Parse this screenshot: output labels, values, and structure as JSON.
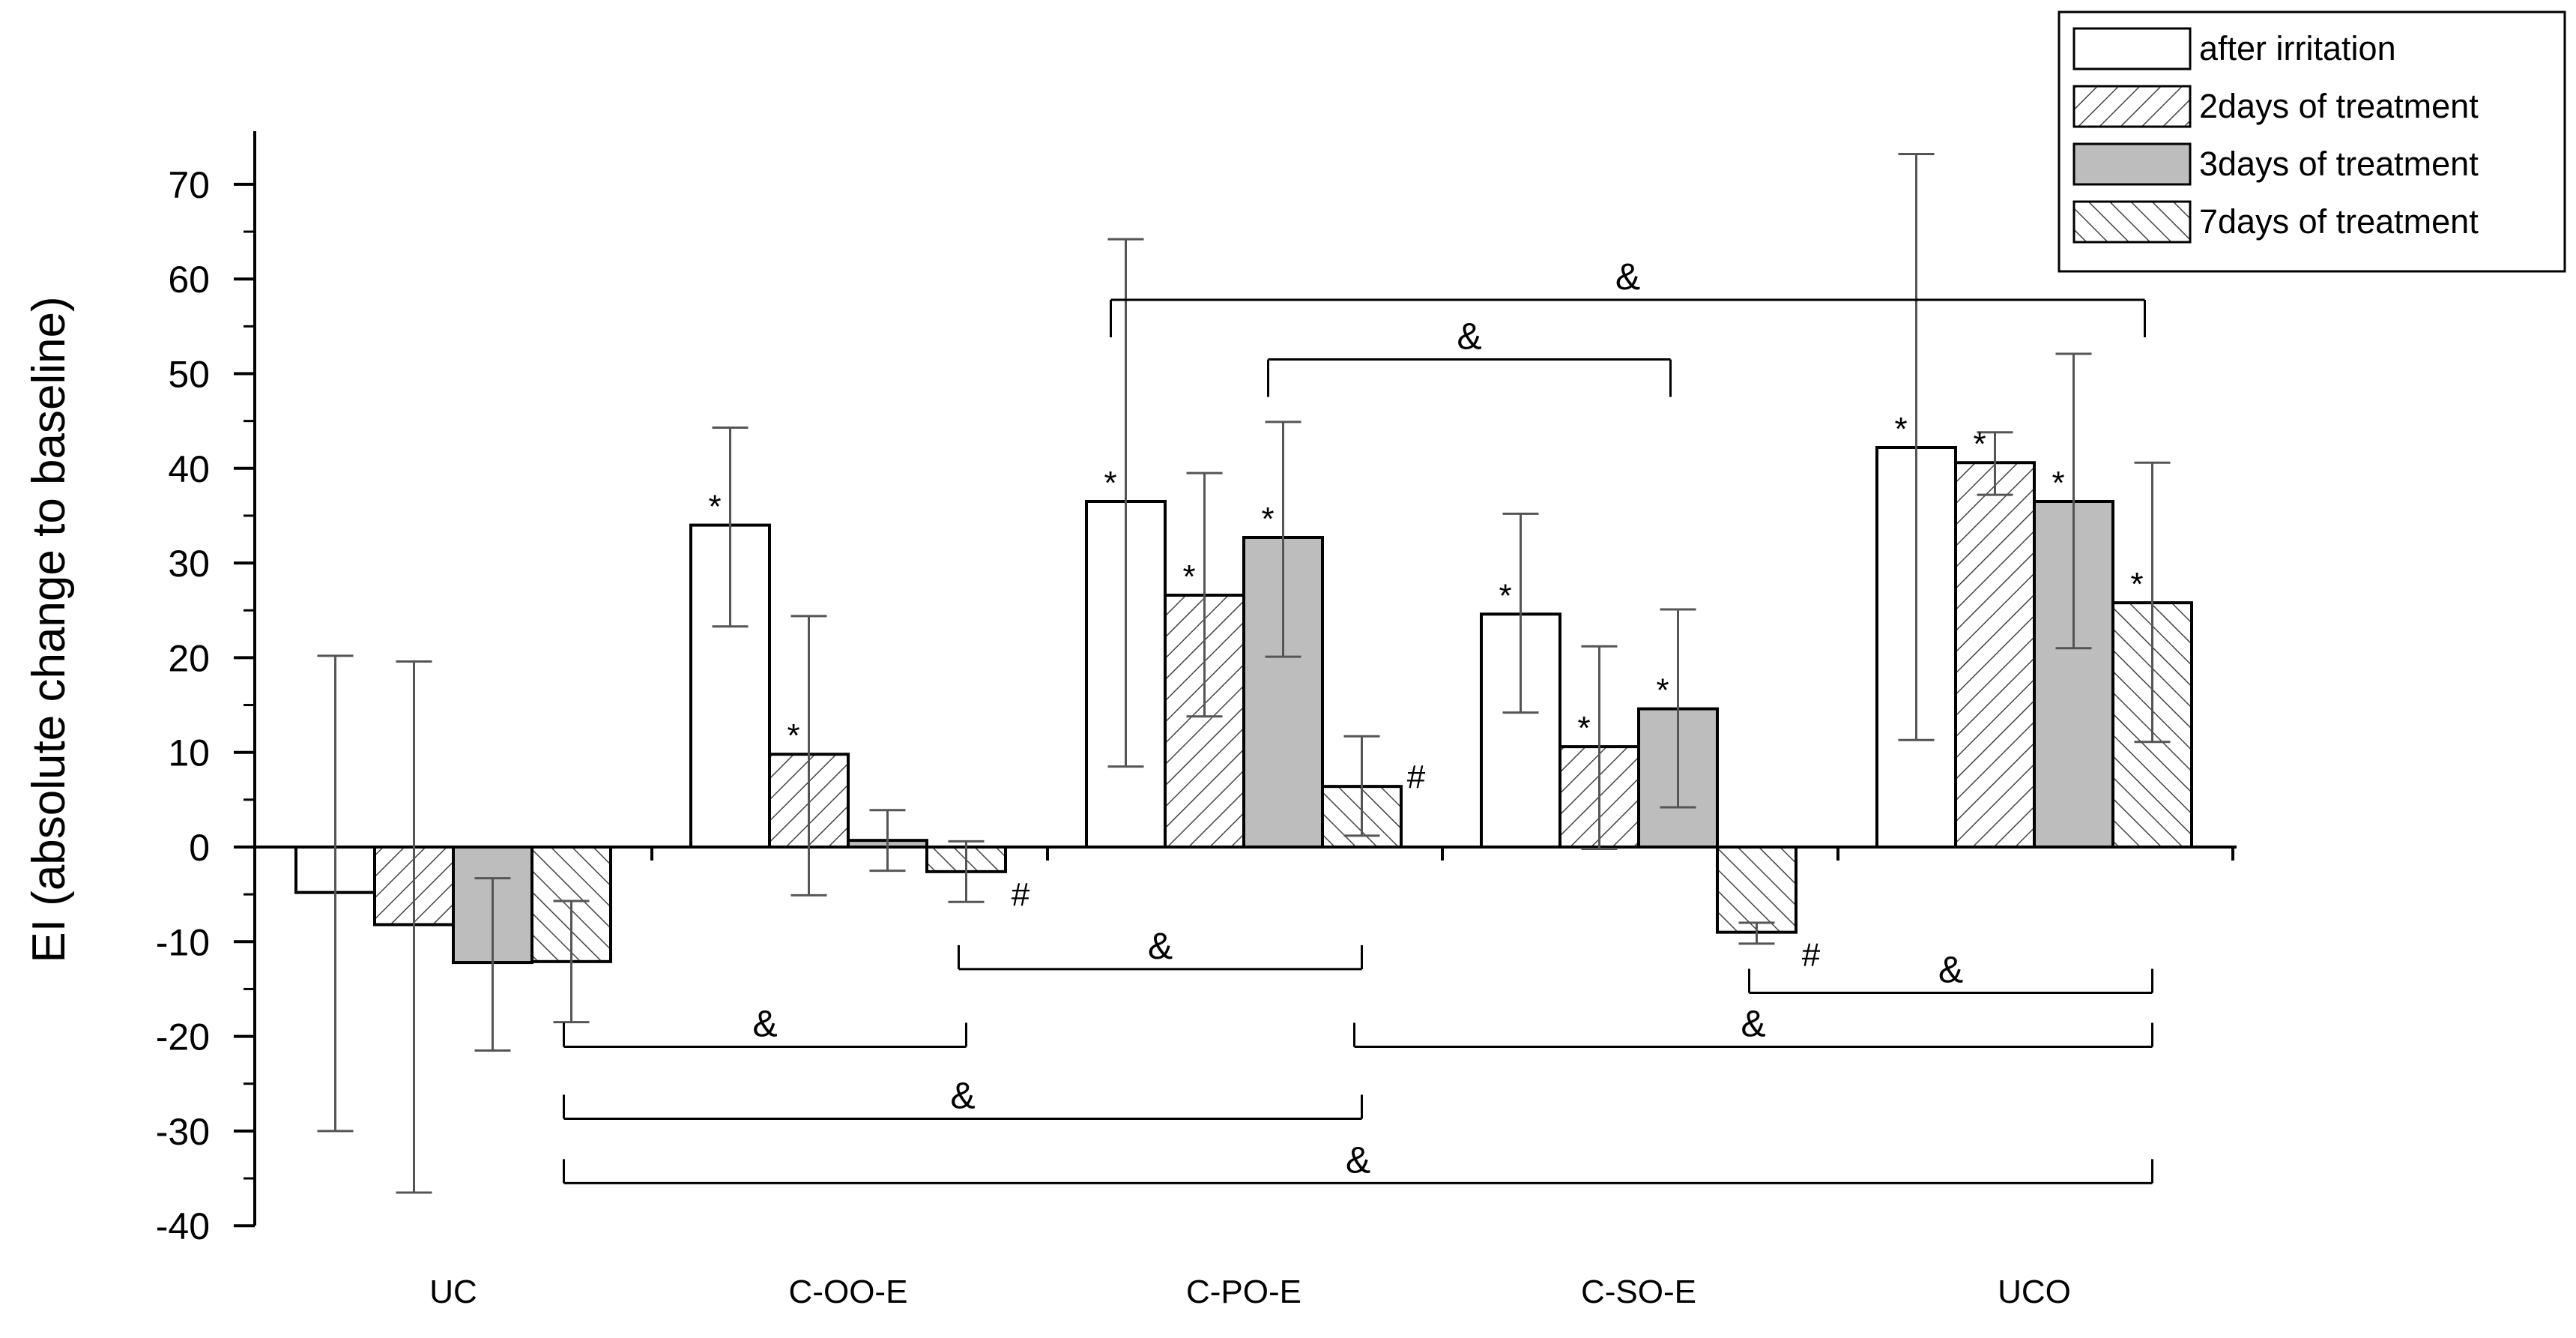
{
  "chart_data": {
    "type": "bar",
    "title": "",
    "xlabel": "",
    "ylabel": "EI (absolute change to baseline)",
    "ylim": [
      -40,
      75
    ],
    "yticks": [
      70,
      60,
      50,
      40,
      30,
      20,
      10,
      0,
      -10,
      -20,
      -30,
      -40
    ],
    "categories": [
      "UC",
      "C-OO-E",
      "C-PO-E",
      "C-SO-E",
      "UCO"
    ],
    "legend_position": "top-right",
    "series": [
      {
        "name": "after irritation",
        "pattern": "white",
        "values": [
          -4.8,
          34,
          36.5,
          24.6,
          42.2
        ],
        "err_low": [
          -30,
          23.3,
          8.5,
          14.2,
          11.3
        ],
        "err_high": [
          20.2,
          44.3,
          64.2,
          35.2,
          73.2
        ],
        "marks": [
          "",
          "*",
          "*",
          "*",
          "*"
        ]
      },
      {
        "name": "2days of treatment",
        "pattern": "hatch-forward",
        "values": [
          -8.2,
          9.8,
          26.6,
          10.6,
          40.6
        ],
        "err_low": [
          -36.5,
          -5.1,
          13.8,
          -0.2,
          37.2
        ],
        "err_high": [
          19.6,
          24.4,
          39.5,
          21.2,
          43.8
        ],
        "marks": [
          "",
          "*",
          "*",
          "*",
          "*"
        ]
      },
      {
        "name": "3days of treatment",
        "pattern": "gray",
        "values": [
          -12.2,
          0.7,
          32.7,
          14.6,
          36.5
        ],
        "err_low": [
          -21.5,
          -2.5,
          20.1,
          4.2,
          21
        ],
        "err_high": [
          -3.3,
          3.9,
          44.9,
          25.1,
          52.1
        ],
        "marks": [
          "",
          "",
          "*",
          "*",
          "*"
        ]
      },
      {
        "name": "7days of treatment",
        "pattern": "hatch-backward",
        "values": [
          -12.1,
          -2.6,
          6.4,
          -9,
          25.8
        ],
        "err_low": [
          -18.5,
          -5.8,
          1.2,
          -10.2,
          11.1
        ],
        "err_high": [
          -5.7,
          0.6,
          11.7,
          -8,
          40.6
        ],
        "marks": [
          "",
          "#",
          "#",
          "#",
          "*"
        ]
      }
    ],
    "annotations": [
      {
        "label": "&",
        "y": 57.8,
        "from": [
          2,
          0
        ],
        "to": [
          4,
          3
        ],
        "legs": "down"
      },
      {
        "label": "&",
        "y": 51.5,
        "from": [
          2,
          2
        ],
        "to": [
          3,
          2
        ],
        "legs": "down"
      },
      {
        "label": "&",
        "y": -12.9,
        "from": [
          1,
          3
        ],
        "to": [
          2,
          3
        ],
        "legs": "up"
      },
      {
        "label": "&",
        "y": -15.4,
        "from": [
          3,
          3
        ],
        "to": [
          4,
          3
        ],
        "legs": "up"
      },
      {
        "label": "&",
        "y": -21.1,
        "from": [
          0,
          3
        ],
        "to": [
          1,
          3
        ],
        "legs": "up"
      },
      {
        "label": "&",
        "y": -21.1,
        "from": [
          2,
          3
        ],
        "to": [
          4,
          3
        ],
        "legs": "up"
      },
      {
        "label": "&",
        "y": -28.7,
        "from": [
          0,
          3
        ],
        "to": [
          2,
          3
        ],
        "legs": "up"
      },
      {
        "label": "&",
        "y": -35.5,
        "from": [
          0,
          3
        ],
        "to": [
          4,
          3
        ],
        "legs": "up"
      }
    ]
  }
}
